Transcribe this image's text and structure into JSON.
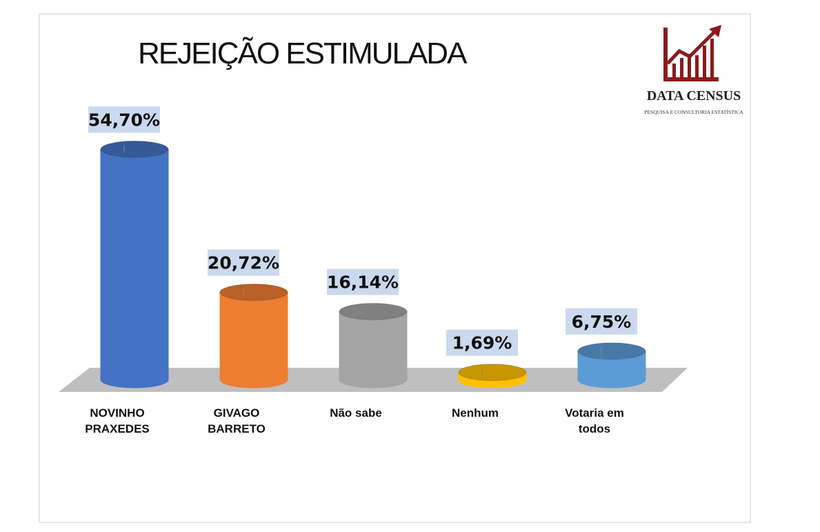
{
  "chart_data": {
    "type": "bar3d",
    "title": "REJEIÇÃO ESTIMULADA",
    "brand": {
      "name": "DATA CENSUS",
      "tagline": "PESQUISA E CONSULTORIA ESTATÍSTICA"
    },
    "categories": [
      "NOVINHO PRAXEDES",
      "GIVAGO BARRETO",
      "Não sabe",
      "Nenhum",
      "Votaria em todos"
    ],
    "values": [
      54.7,
      20.72,
      16.14,
      1.69,
      6.75
    ],
    "value_labels": [
      "54,70%",
      "20,72%",
      "16,14%",
      "1,69%",
      "6,75%"
    ],
    "colors": [
      "#4472c4",
      "#ed7d31",
      "#a5a5a5",
      "#ffc000",
      "#5b9bd5"
    ]
  }
}
